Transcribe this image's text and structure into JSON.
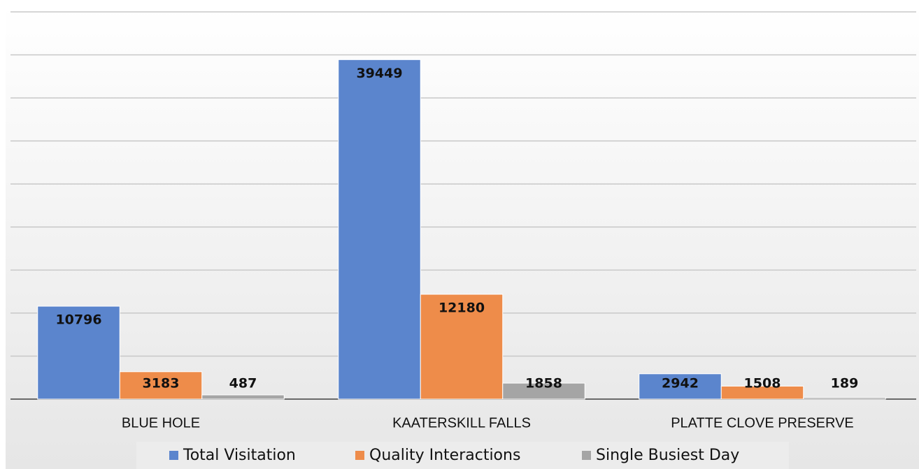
{
  "chart_data": {
    "type": "bar",
    "categories": [
      "BLUE HOLE",
      "KAATERSKILL FALLS",
      "PLATTE CLOVE PRESERVE"
    ],
    "series": [
      {
        "name": "Total Visitation",
        "color": "#5b85cd",
        "values": [
          10796,
          39449,
          2942
        ]
      },
      {
        "name": "Quality Interactions",
        "color": "#ee8c4a",
        "values": [
          3183,
          12180,
          1508
        ]
      },
      {
        "name": "Single Busiest Day",
        "color": "#a5a5a5",
        "values": [
          487,
          1858,
          189
        ]
      }
    ],
    "ylim": [
      0,
      45000
    ],
    "yticks": [
      0,
      5000,
      10000,
      15000,
      20000,
      25000,
      30000,
      35000,
      40000,
      45000
    ],
    "grid": true,
    "legend": "bottom"
  }
}
